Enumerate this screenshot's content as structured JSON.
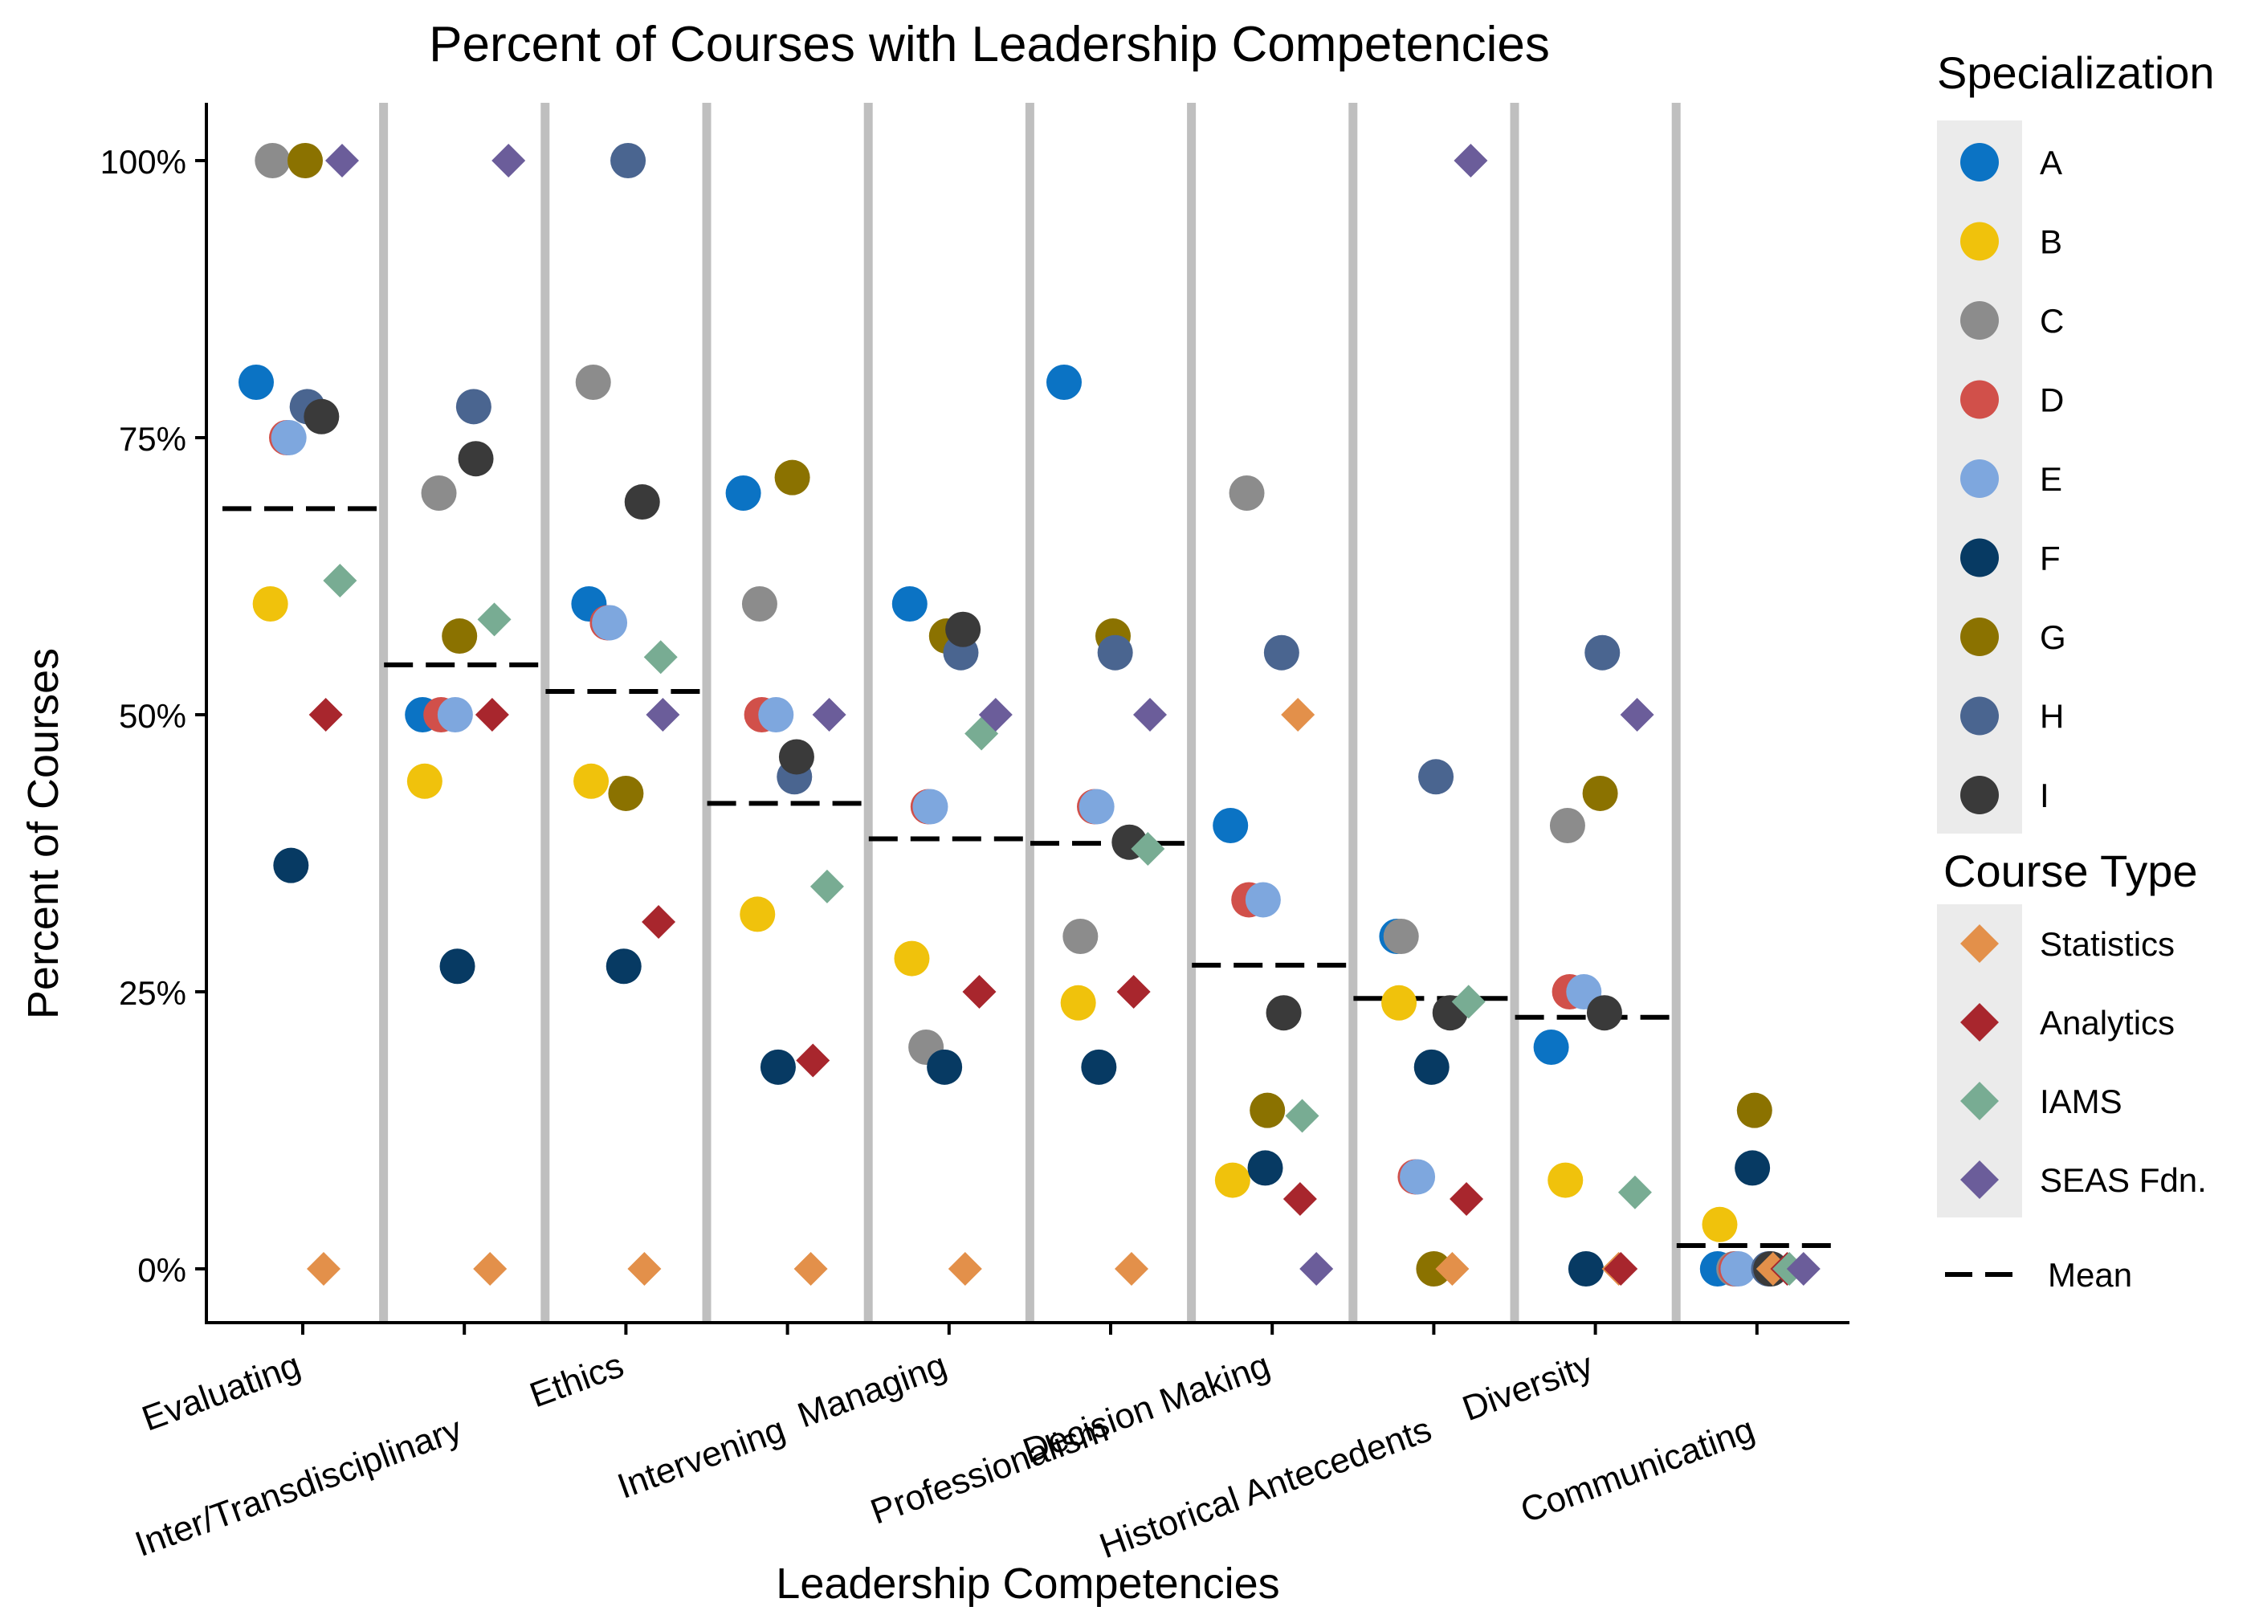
{
  "chart_data": {
    "type": "scatter",
    "title": "Percent of Courses with Leadership Competencies",
    "xlabel": "Leadership Competencies",
    "ylabel": "Percent of Courses",
    "ylim": [
      0,
      100
    ],
    "y_ticks": [
      "0%",
      "25%",
      "50%",
      "75%",
      "100%"
    ],
    "y_tick_values": [
      0,
      25,
      50,
      75,
      100
    ],
    "categories": [
      "Evaluating",
      "Inter/Transdisciplinary",
      "Ethics",
      "Intervening",
      "Managing",
      "Professionalism",
      "Decision Making",
      "Historical Antecedents",
      "Diversity",
      "Communicating"
    ],
    "series_order": [
      "A",
      "B",
      "C",
      "D",
      "E",
      "F",
      "G",
      "H",
      "I",
      "Statistics",
      "Analytics",
      "IAMS",
      "SEAS Fdn."
    ],
    "series": [
      {
        "name": "A",
        "group": "Specialization",
        "shape": "circle",
        "color": "#0b73c4",
        "values": [
          80,
          50,
          60,
          70,
          60,
          80,
          40,
          30,
          20,
          0
        ]
      },
      {
        "name": "B",
        "group": "Specialization",
        "shape": "circle",
        "color": "#f0c20c",
        "values": [
          60,
          44,
          44,
          32,
          28,
          24,
          8,
          24,
          8,
          4
        ]
      },
      {
        "name": "C",
        "group": "Specialization",
        "shape": "circle",
        "color": "#8c8c8c",
        "values": [
          100,
          70,
          80,
          60,
          20,
          30,
          70,
          30,
          40,
          0
        ]
      },
      {
        "name": "D",
        "group": "Specialization",
        "shape": "circle",
        "color": "#d1504a",
        "values": [
          75,
          50,
          58.3,
          50,
          41.7,
          41.7,
          33.3,
          8.3,
          25,
          0
        ]
      },
      {
        "name": "E",
        "group": "Specialization",
        "shape": "circle",
        "color": "#7ea7de",
        "values": [
          75,
          50,
          58.3,
          50,
          41.7,
          41.7,
          33.3,
          8.3,
          25,
          0
        ]
      },
      {
        "name": "F",
        "group": "Specialization",
        "shape": "circle",
        "color": "#073a63",
        "values": [
          36.4,
          27.3,
          27.3,
          18.2,
          18.2,
          18.2,
          9.1,
          18.2,
          0,
          9.1
        ]
      },
      {
        "name": "G",
        "group": "Specialization",
        "shape": "circle",
        "color": "#8b7200",
        "values": [
          100,
          57.1,
          42.9,
          71.4,
          57.1,
          57.1,
          14.3,
          0,
          42.9,
          14.3
        ]
      },
      {
        "name": "H",
        "group": "Specialization",
        "shape": "circle",
        "color": "#4a6590",
        "values": [
          77.8,
          77.8,
          100,
          44.4,
          55.6,
          55.6,
          55.6,
          44.4,
          55.6,
          0
        ]
      },
      {
        "name": "I",
        "group": "Specialization",
        "shape": "circle",
        "color": "#3a3a3a",
        "values": [
          76.9,
          73.1,
          69.2,
          46.2,
          57.7,
          38.5,
          23.1,
          23.1,
          23.1,
          0
        ]
      },
      {
        "name": "Statistics",
        "group": "Course Type",
        "shape": "diamond",
        "color": "#e3904a",
        "values": [
          0,
          0,
          0,
          0,
          0,
          0,
          50,
          0,
          0,
          0
        ]
      },
      {
        "name": "Analytics",
        "group": "Course Type",
        "shape": "diamond",
        "color": "#a8262d",
        "values": [
          50,
          50,
          31.3,
          18.8,
          25,
          25,
          6.3,
          6.3,
          0,
          0
        ]
      },
      {
        "name": "IAMS",
        "group": "Course Type",
        "shape": "diamond",
        "color": "#78ac93",
        "values": [
          62.1,
          58.6,
          55.2,
          34.5,
          48.3,
          37.9,
          13.8,
          24.1,
          6.9,
          0
        ]
      },
      {
        "name": "SEAS Fdn.",
        "group": "Course Type",
        "shape": "diamond",
        "color": "#6b5d9a",
        "values": [
          100,
          100,
          50,
          50,
          50,
          50,
          0,
          100,
          50,
          0
        ]
      }
    ],
    "means": [
      68.6,
      54.5,
      52.1,
      42,
      38.8,
      38.4,
      27.4,
      24.4,
      22.7,
      2.1
    ],
    "legend": {
      "placement": "right",
      "specialization_title": "Specialization",
      "specialization": [
        "A",
        "B",
        "C",
        "D",
        "E",
        "F",
        "G",
        "H",
        "I"
      ],
      "course_type_title": "Course Type",
      "course_type": [
        "Statistics",
        "Analytics",
        "IAMS",
        "SEAS Fdn."
      ],
      "mean_label": "Mean"
    },
    "colors": {
      "separator": "#bfbfbf",
      "legend_key_bg": "#ebebeb",
      "mean_line": "#000000",
      "axis": "#000000"
    }
  }
}
